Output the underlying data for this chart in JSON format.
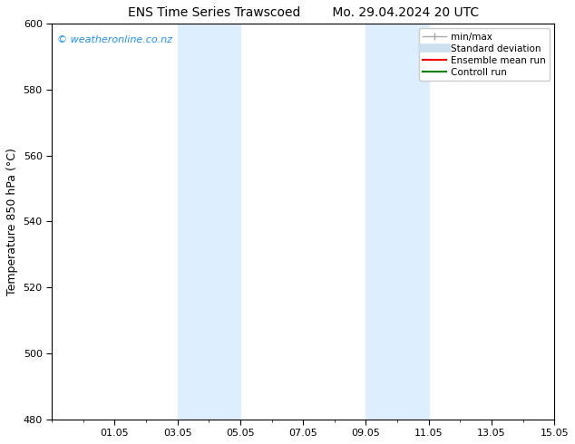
{
  "title": "ENS Time Series Trawscoed        Mo. 29.04.2024 20 UTC",
  "ylabel": "Temperature 850 hPa (°C)",
  "ylim": [
    480,
    600
  ],
  "yticks": [
    480,
    500,
    520,
    540,
    560,
    580,
    600
  ],
  "xlim": [
    0,
    16
  ],
  "xtick_positions": [
    2,
    4,
    6,
    8,
    10,
    12,
    14,
    16
  ],
  "xtick_labels": [
    "01.05",
    "03.05",
    "05.05",
    "07.05",
    "09.05",
    "11.05",
    "13.05",
    "15.05"
  ],
  "bg_color": "#ffffff",
  "plot_bg_color": "#ffffff",
  "shade_bands": [
    {
      "x_start": 4.0,
      "x_end": 6.0,
      "color": "#ddeeff"
    },
    {
      "x_start": 10.0,
      "x_end": 12.0,
      "color": "#ddeeff"
    }
  ],
  "watermark_text": "© weatheronline.co.nz",
  "watermark_color": "#1e90ff",
  "legend_items": [
    {
      "label": "min/max",
      "color": "#aaaaaa",
      "lw": 1.0,
      "ls": "-",
      "marker": "|"
    },
    {
      "label": "Standard deviation",
      "color": "#cce0f0",
      "lw": 7,
      "ls": "-",
      "marker": ""
    },
    {
      "label": "Ensemble mean run",
      "color": "#ff0000",
      "lw": 1.5,
      "ls": "-",
      "marker": ""
    },
    {
      "label": "Controll run",
      "color": "#008000",
      "lw": 1.5,
      "ls": "-",
      "marker": ""
    }
  ],
  "title_fontsize": 10,
  "axis_label_fontsize": 9,
  "tick_fontsize": 8,
  "legend_fontsize": 7.5,
  "watermark_fontsize": 8
}
